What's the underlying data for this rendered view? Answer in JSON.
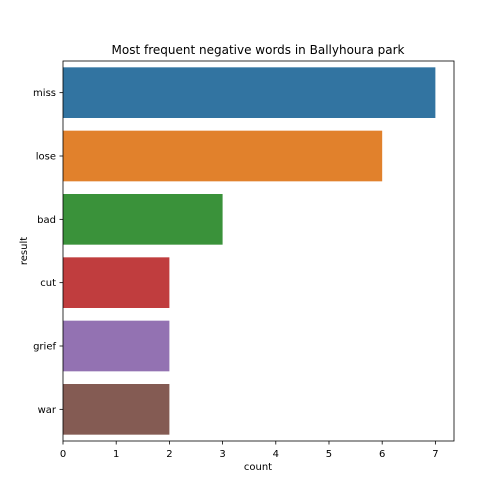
{
  "chart_data": {
    "type": "bar",
    "orientation": "horizontal",
    "title": "Most frequent negative words in Ballyhoura park",
    "xlabel": "count",
    "ylabel": "result",
    "categories": [
      "miss",
      "lose",
      "bad",
      "cut",
      "grief",
      "war"
    ],
    "values": [
      7,
      6,
      3,
      2,
      2,
      2
    ],
    "colors": [
      "#3274a1",
      "#e1812c",
      "#3a923a",
      "#c03d3e",
      "#9372b2",
      "#845b53"
    ],
    "xlim": [
      0,
      7.35
    ],
    "xticks": [
      0,
      1,
      2,
      3,
      4,
      5,
      6,
      7
    ],
    "grid": false,
    "legend": "none"
  }
}
